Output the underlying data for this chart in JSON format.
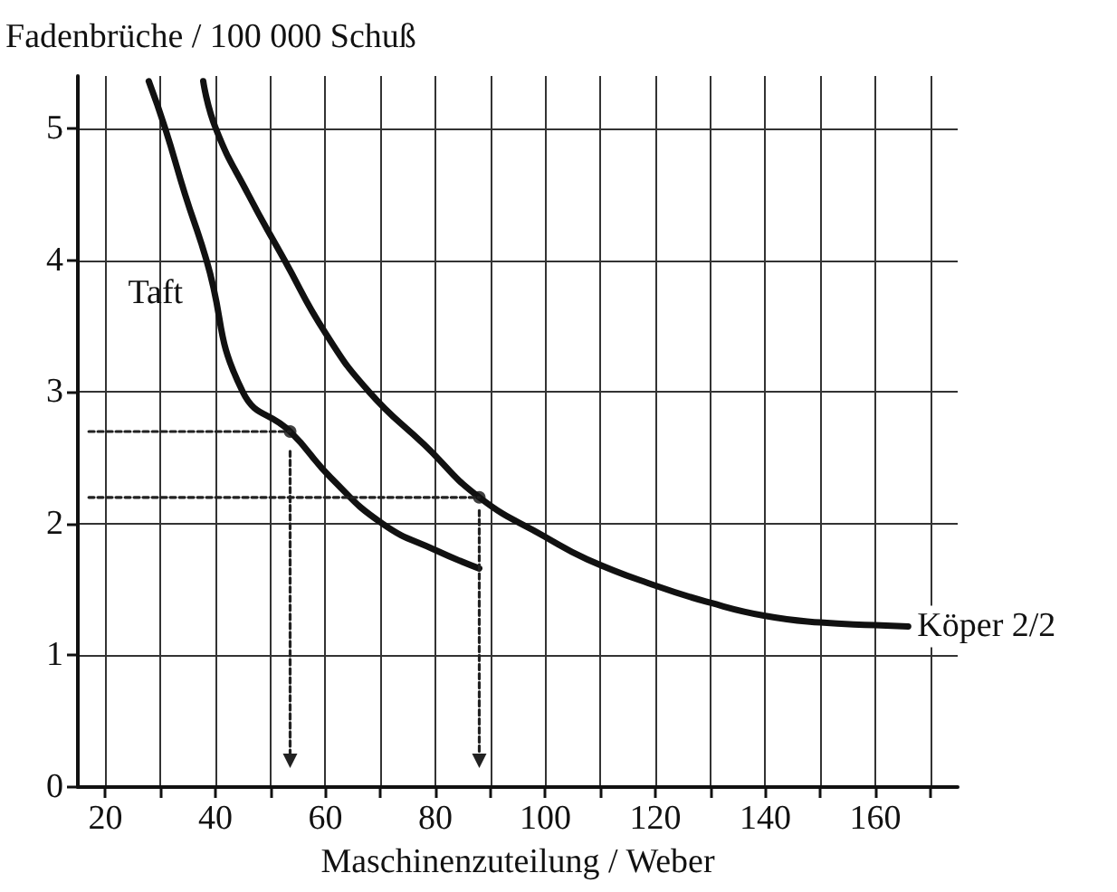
{
  "chart_data": {
    "type": "line",
    "ylabel": "Fadenbrüche / 100 000 Schuß",
    "xlabel": "Maschinenzuteilung / Weber",
    "xlim": [
      15,
      175
    ],
    "ylim": [
      0,
      5.4
    ],
    "xticks": [
      20,
      {
        "value": 30,
        "label": null
      },
      40,
      {
        "value": 50,
        "label": null
      },
      60,
      {
        "value": 70,
        "label": null
      },
      80,
      {
        "value": 90,
        "label": null
      },
      100,
      {
        "value": 110,
        "label": null
      },
      120,
      {
        "value": 130,
        "label": null
      },
      140,
      {
        "value": 150,
        "label": null
      },
      160,
      {
        "value": 170,
        "label": null
      }
    ],
    "yticks": [
      0,
      1,
      2,
      3,
      4,
      5
    ],
    "grid": true,
    "legend": false,
    "marker": "none",
    "line_style": "solid",
    "series": [
      {
        "name": "Taft",
        "color": "#111111",
        "x": [
          27.9,
          30.9,
          34.5,
          38.4,
          45,
          53.6,
          61,
          70.4,
          80,
          88
        ],
        "values": [
          5.36,
          5,
          4.5,
          4,
          3,
          2.7,
          2.35,
          2,
          1.8,
          1.66
        ]
      },
      {
        "name": "Köper 2/2",
        "color": "#111111",
        "x": [
          37.8,
          40.1,
          46,
          52.6,
          60,
          68,
          78,
          88,
          100,
          107.6,
          120,
          130,
          140,
          150,
          160,
          166
        ],
        "values": [
          5.36,
          5,
          4.5,
          4,
          3.45,
          3,
          2.6,
          2.2,
          1.9,
          1.73,
          1.53,
          1.4,
          1.3,
          1.25,
          1.23,
          1.22
        ]
      },
      {
        "type": "scatter",
        "color": "#111111",
        "marker": "circle",
        "x": [
          53.6,
          88
        ],
        "values": [
          2.7,
          2.2
        ]
      },
      {
        "color": "#222222",
        "line_style": "dotted",
        "x": [
          17,
          53.6
        ],
        "values": [
          2.7,
          2.7
        ]
      },
      {
        "color": "#222222",
        "line_style": "dotted",
        "x": [
          17,
          88
        ],
        "values": [
          2.2,
          2.2
        ]
      },
      {
        "color": "#222222",
        "line_style": "dotted",
        "marker": "triangle",
        "x": [
          53.6,
          53.6
        ],
        "values": [
          2.55,
          0.2
        ]
      },
      {
        "color": "#222222",
        "line_style": "dotted",
        "marker": "triangle",
        "x": [
          88,
          88
        ],
        "values": [
          2.1,
          0.2
        ]
      }
    ]
  }
}
